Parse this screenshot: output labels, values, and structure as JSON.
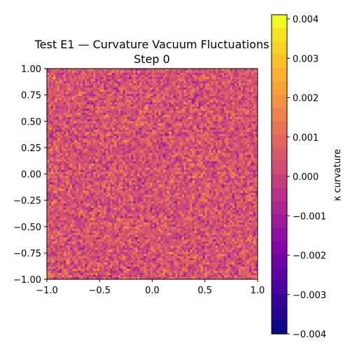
{
  "chart_data": {
    "type": "heatmap",
    "title_line1": "Test E1 — Curvature Vacuum Fluctuations",
    "title_line2": "Step 0",
    "xlim": [
      -1.0,
      1.0
    ],
    "ylim": [
      -1.0,
      1.0
    ],
    "xticks": [
      "−1.0",
      "−0.5",
      "0.0",
      "0.5",
      "1.0"
    ],
    "yticks": [
      "1.00",
      "0.75",
      "0.50",
      "0.25",
      "0.00",
      "−0.25",
      "−0.50",
      "−0.75",
      "−1.00"
    ],
    "grid": false,
    "colormap": "plasma",
    "colorbar": {
      "label": "κ curvature",
      "range": [
        -0.004,
        0.004
      ],
      "ticks": [
        "0.004",
        "0.003",
        "0.002",
        "0.001",
        "0.000",
        "−0.001",
        "−0.002",
        "−0.003",
        "−0.004"
      ]
    }
  }
}
